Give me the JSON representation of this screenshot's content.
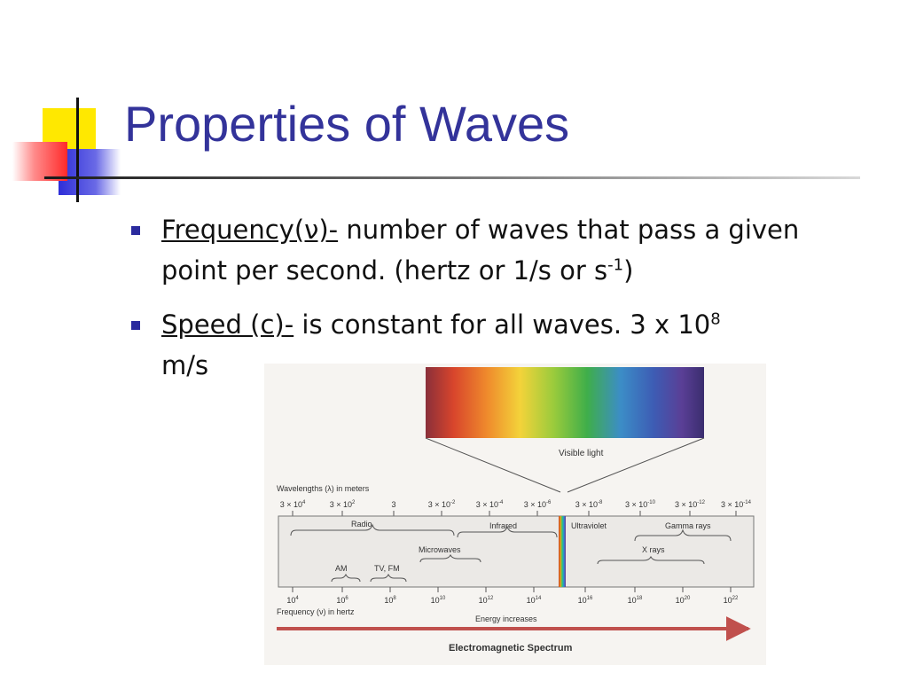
{
  "slide": {
    "title": "Properties of Waves",
    "bullets": [
      {
        "term": "Frequency(ν)-",
        "text_before_sup": " number of waves that pass a given point per second. (hertz or 1/s or s",
        "sup": "-1",
        "text_after_sup": ")"
      },
      {
        "term": "Speed (c)-",
        "text_before_sup": " is constant for all waves.  3 x 10",
        "sup": "8",
        "text_after_sup": "m/s"
      }
    ]
  },
  "figure": {
    "visible_label": "Visible light",
    "wavelength_title": "Wavelengths (λ) in meters",
    "wavelength_ticks": [
      {
        "base": "3 × 10",
        "exp": "4"
      },
      {
        "base": "3 × 10",
        "exp": "2"
      },
      {
        "base": "3",
        "exp": ""
      },
      {
        "base": "3 × 10",
        "exp": "-2"
      },
      {
        "base": "3 × 10",
        "exp": "-4"
      },
      {
        "base": "3 × 10",
        "exp": "-6"
      },
      {
        "base": "3 × 10",
        "exp": "-8"
      },
      {
        "base": "3 × 10",
        "exp": "-10"
      },
      {
        "base": "3 × 10",
        "exp": "-12"
      },
      {
        "base": "3 × 10",
        "exp": "-14"
      }
    ],
    "bands": {
      "radio": "Radio",
      "infrared": "Infrared",
      "microwaves": "Microwaves",
      "am": "AM",
      "tvfm": "TV, FM",
      "ultraviolet": "Ultraviolet",
      "gamma": "Gamma rays",
      "xrays": "X rays"
    },
    "frequency_ticks": [
      {
        "base": "10",
        "exp": "4"
      },
      {
        "base": "10",
        "exp": "6"
      },
      {
        "base": "10",
        "exp": "8"
      },
      {
        "base": "10",
        "exp": "10"
      },
      {
        "base": "10",
        "exp": "12"
      },
      {
        "base": "10",
        "exp": "14"
      },
      {
        "base": "10",
        "exp": "16"
      },
      {
        "base": "10",
        "exp": "18"
      },
      {
        "base": "10",
        "exp": "20"
      },
      {
        "base": "10",
        "exp": "22"
      }
    ],
    "frequency_title": "Frequency (ν) in hertz",
    "energy_label": "Energy increases",
    "caption": "Electromagnetic Spectrum"
  }
}
